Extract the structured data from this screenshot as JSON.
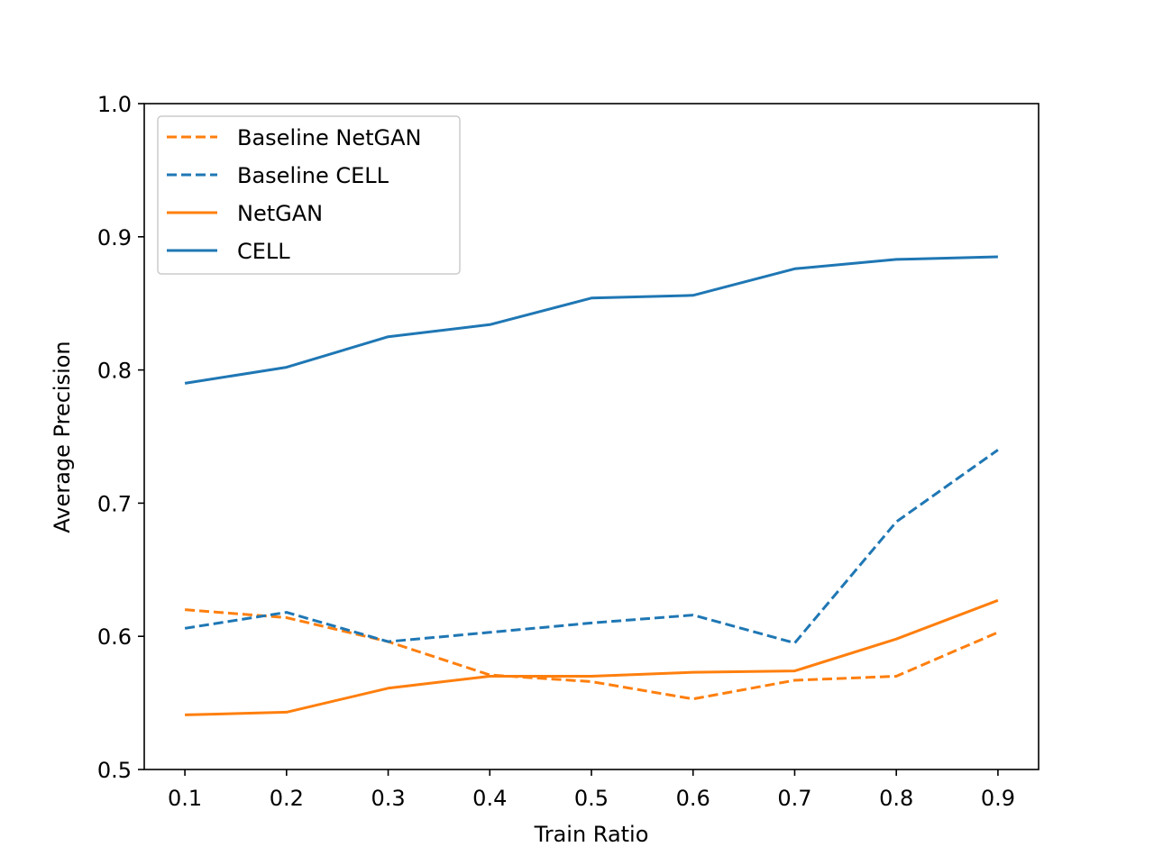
{
  "chart_data": {
    "type": "line",
    "title": "",
    "xlabel": "Train Ratio",
    "ylabel": "Average Precision",
    "xlim": [
      0.06,
      0.94
    ],
    "ylim": [
      0.5,
      1.0
    ],
    "x": [
      0.1,
      0.2,
      0.3,
      0.4,
      0.5,
      0.6,
      0.7,
      0.8,
      0.9
    ],
    "x_ticks": [
      "0.1",
      "0.2",
      "0.3",
      "0.4",
      "0.5",
      "0.6",
      "0.7",
      "0.8",
      "0.9"
    ],
    "y_ticks": [
      "0.5",
      "0.6",
      "0.7",
      "0.8",
      "0.9",
      "1.0"
    ],
    "grid": false,
    "legend_position": "top-left",
    "series": [
      {
        "name": "Baseline NetGAN",
        "color": "#ff7f0e",
        "style": "dashed",
        "values": [
          0.62,
          0.614,
          0.596,
          0.571,
          0.566,
          0.553,
          0.567,
          0.57,
          0.603
        ]
      },
      {
        "name": "Baseline CELL",
        "color": "#1f77b4",
        "style": "dashed",
        "values": [
          0.606,
          0.618,
          0.596,
          0.603,
          0.61,
          0.616,
          0.595,
          0.686,
          0.74
        ]
      },
      {
        "name": "NetGAN",
        "color": "#ff7f0e",
        "style": "solid",
        "values": [
          0.541,
          0.543,
          0.561,
          0.57,
          0.57,
          0.573,
          0.574,
          0.598,
          0.627
        ]
      },
      {
        "name": "CELL",
        "color": "#1f77b4",
        "style": "solid",
        "values": [
          0.79,
          0.802,
          0.825,
          0.834,
          0.854,
          0.856,
          0.876,
          0.883,
          0.885
        ]
      }
    ]
  }
}
